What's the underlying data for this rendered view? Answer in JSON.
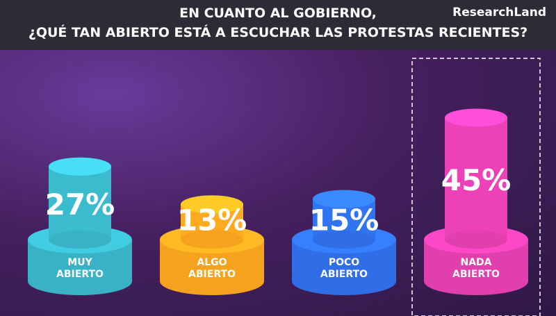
{
  "chart_data": {
    "type": "bar",
    "title": "EN CUANTO AL GOBIERNO,",
    "subtitle": "¿QUÉ TAN ABIERTO ESTÁ A ESCUCHAR LAS PROTESTAS RECIENTES?",
    "brand": "ResearchLand",
    "categories": [
      "MUY ABIERTO",
      "ALGO ABIERTO",
      "POCO ABIERTO",
      "NADA ABIERTO"
    ],
    "values": [
      27,
      13,
      15,
      45
    ],
    "value_labels": [
      "27%",
      "13%",
      "15%",
      "45%"
    ],
    "colors": [
      "#38b2c4",
      "#f5a21f",
      "#2f6ee6",
      "#e23fae"
    ],
    "ylim": [
      0,
      50
    ],
    "highlight": 3
  }
}
